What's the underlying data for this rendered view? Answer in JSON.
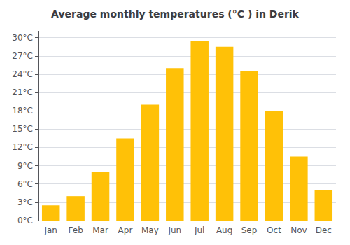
{
  "chart_data": {
    "type": "bar",
    "title": "Average monthly temperatures (°C ) in Derik",
    "categories": [
      "Jan",
      "Feb",
      "Mar",
      "Apr",
      "May",
      "Jun",
      "Jul",
      "Aug",
      "Sep",
      "Oct",
      "Nov",
      "Dec"
    ],
    "values": [
      2.5,
      4.0,
      8.0,
      13.5,
      19.0,
      25.0,
      29.5,
      28.5,
      24.5,
      18.0,
      10.5,
      5.0
    ],
    "color": "#FFC107",
    "ylim": [
      0,
      31
    ],
    "yticks": [
      {
        "value": 0,
        "label": "0°C"
      },
      {
        "value": 3,
        "label": "3°C"
      },
      {
        "value": 6,
        "label": "6°C"
      },
      {
        "value": 9,
        "label": "9°C"
      },
      {
        "value": 12,
        "label": "12°C"
      },
      {
        "value": 15,
        "label": "15°C"
      },
      {
        "value": 18,
        "label": "18°C"
      },
      {
        "value": 21,
        "label": "21°C"
      },
      {
        "value": 24,
        "label": "24°C"
      },
      {
        "value": 27,
        "label": "27°C"
      },
      {
        "value": 30,
        "label": "30°C"
      }
    ],
    "grid": true
  }
}
